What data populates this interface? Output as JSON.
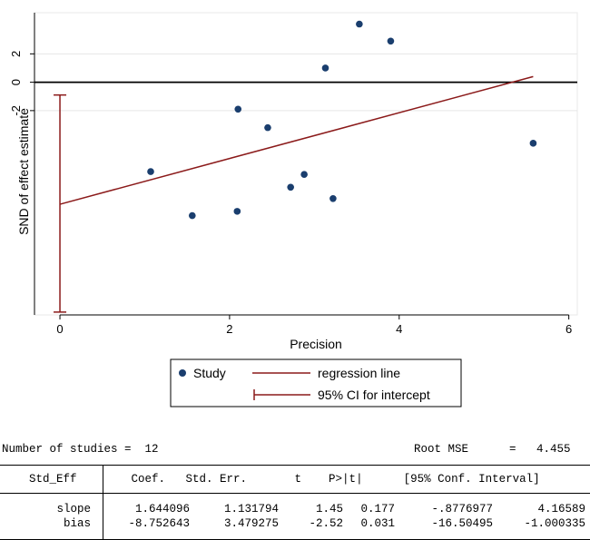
{
  "chart_data": {
    "type": "scatter",
    "xlabel": "Precision",
    "ylabel": "SND of effect estimate",
    "xlim": [
      -0.3,
      6.1
    ],
    "ylim": [
      -8.2,
      2.45
    ],
    "xticks": [
      "0",
      "2",
      "4",
      "6"
    ],
    "xtick_values": [
      0,
      2,
      4,
      6
    ],
    "yticks": [
      "2",
      "0",
      "-2"
    ],
    "ytick_values": [
      1,
      0,
      -1
    ],
    "grid": "horizontal",
    "legend_position": "bottom",
    "series": [
      {
        "name": "Study",
        "points": [
          {
            "x": 1.07,
            "y": -3.15
          },
          {
            "x": 1.56,
            "y": -4.7
          },
          {
            "x": 2.09,
            "y": -4.55
          },
          {
            "x": 2.1,
            "y": -0.95
          },
          {
            "x": 2.45,
            "y": -1.6
          },
          {
            "x": 2.72,
            "y": -3.7
          },
          {
            "x": 2.88,
            "y": -3.25
          },
          {
            "x": 3.13,
            "y": 0.5
          },
          {
            "x": 3.22,
            "y": -4.1
          },
          {
            "x": 3.53,
            "y": 2.05
          },
          {
            "x": 3.9,
            "y": 1.45
          },
          {
            "x": 5.58,
            "y": -2.15
          }
        ]
      },
      {
        "name": "regression line",
        "points": [
          {
            "x": 0,
            "y": -4.3
          },
          {
            "x": 5.58,
            "y": 0.2
          }
        ]
      },
      {
        "name": "95% CI for intercept",
        "x": 0,
        "range": [
          -8.1,
          -0.45
        ]
      }
    ],
    "reference_line_y": 0,
    "colors": {
      "points": "#1a3e6e",
      "regression": "#8b1a1a",
      "ci": "#8b1a1a",
      "gridline": "#e6e6e6",
      "zero_line": "#000000"
    }
  },
  "legend": {
    "study_label": "Study",
    "regression_label": "regression line",
    "ci_label": "95% CI for intercept"
  },
  "results": {
    "n_studies_line": "Number of studies =  12",
    "root_mse_line": "Root MSE      =   4.455",
    "header": "    Std_Eff        Coef.   Std. Err.       t    P>|t|      [95% Conf. Interval]",
    "rows": [
      {
        "name": "slope",
        "coef": "1.644096",
        "se": "1.131794",
        "t": "1.45",
        "p": "0.177",
        "lo": "-.8776977",
        "hi": "4.16589"
      },
      {
        "name": "bias",
        "coef": "-8.752643",
        "se": "3.479275",
        "t": "-2.52",
        "p": "0.031",
        "lo": "-16.50495",
        "hi": "-1.000335"
      }
    ]
  }
}
